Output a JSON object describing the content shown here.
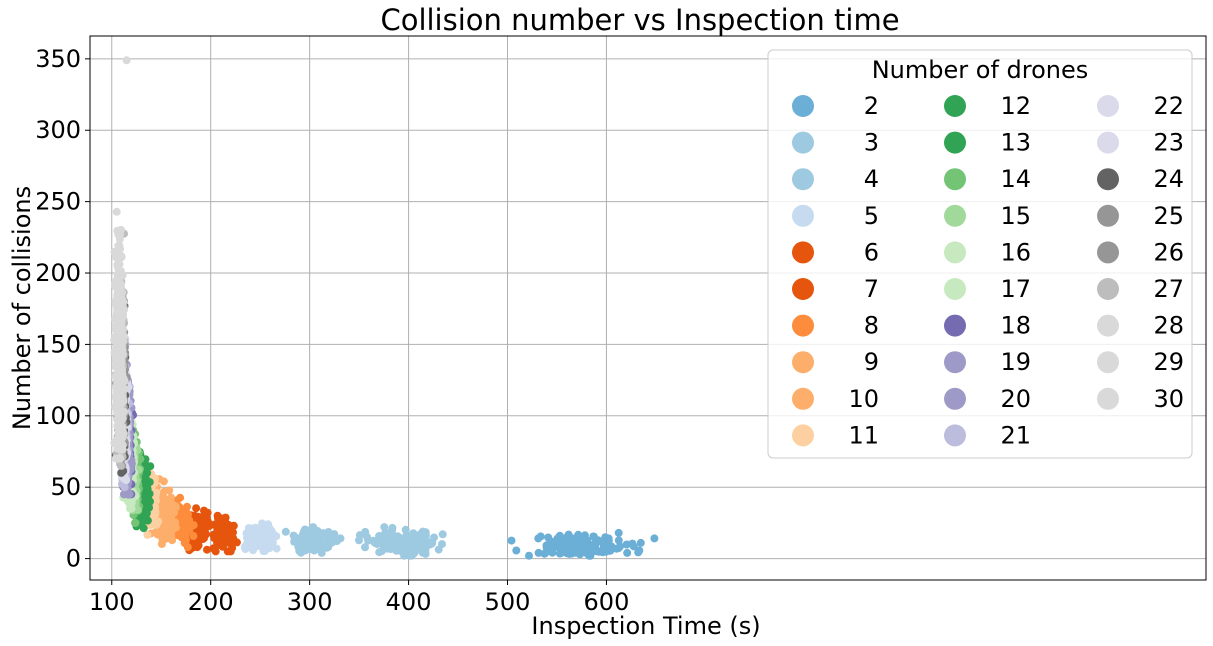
{
  "chart_data": {
    "type": "scatter",
    "title": "Collision number vs Inspection time",
    "xlabel": "Inspection Time (s)",
    "ylabel": "Number of collisions",
    "xlim": [
      78,
      1206
    ],
    "ylim": [
      -15,
      366
    ],
    "xticks": [
      100,
      200,
      300,
      400,
      500,
      600
    ],
    "yticks": [
      0,
      50,
      100,
      150,
      200,
      250,
      300,
      350
    ],
    "grid": true,
    "legend": {
      "title": "Number of drones",
      "placement": "upper-right",
      "columns": 3
    },
    "series": [
      {
        "name": "2",
        "color": "#6baed6",
        "x_center": 572,
        "x_spread": 26,
        "y_center": 9,
        "y_spread": 4,
        "y_min": 2,
        "y_max": 18
      },
      {
        "name": "3",
        "color": "#9ecae1",
        "x_center": 395,
        "x_spread": 18,
        "y_center": 11,
        "y_spread": 4,
        "y_min": 2,
        "y_max": 30
      },
      {
        "name": "4",
        "color": "#9ecae1",
        "x_center": 302,
        "x_spread": 10,
        "y_center": 12,
        "y_spread": 4,
        "y_min": 2,
        "y_max": 22
      },
      {
        "name": "5",
        "color": "#c6dbef",
        "x_center": 250,
        "x_spread": 7,
        "y_center": 15,
        "y_spread": 4,
        "y_min": 5,
        "y_max": 28
      },
      {
        "name": "6",
        "color": "#e6550d",
        "x_center": 214,
        "x_spread": 5,
        "y_center": 17,
        "y_spread": 5,
        "y_min": 5,
        "y_max": 35
      },
      {
        "name": "7",
        "color": "#e6550d",
        "x_center": 187,
        "x_spread": 4,
        "y_center": 20,
        "y_spread": 6,
        "y_min": 5,
        "y_max": 45
      },
      {
        "name": "8",
        "color": "#fd8d3c",
        "x_center": 170,
        "x_spread": 4,
        "y_center": 24,
        "y_spread": 6,
        "y_min": 8,
        "y_max": 45
      },
      {
        "name": "9",
        "color": "#fdae6b",
        "x_center": 156,
        "x_spread": 4,
        "y_center": 28,
        "y_spread": 7,
        "y_min": 10,
        "y_max": 50
      },
      {
        "name": "10",
        "color": "#fdae6b",
        "x_center": 146,
        "x_spread": 4,
        "y_center": 33,
        "y_spread": 8,
        "y_min": 12,
        "y_max": 60
      },
      {
        "name": "11",
        "color": "#fdd0a2",
        "x_center": 139,
        "x_spread": 3,
        "y_center": 37,
        "y_spread": 9,
        "y_min": 15,
        "y_max": 80
      },
      {
        "name": "12",
        "color": "#31a354",
        "x_center": 133,
        "x_spread": 3,
        "y_center": 42,
        "y_spread": 10,
        "y_min": 20,
        "y_max": 80
      },
      {
        "name": "13",
        "color": "#31a354",
        "x_center": 128,
        "x_spread": 3,
        "y_center": 47,
        "y_spread": 11,
        "y_min": 20,
        "y_max": 80
      },
      {
        "name": "14",
        "color": "#74c476",
        "x_center": 124,
        "x_spread": 2,
        "y_center": 54,
        "y_spread": 12,
        "y_min": 25,
        "y_max": 90
      },
      {
        "name": "15",
        "color": "#a1d99b",
        "x_center": 121,
        "x_spread": 2,
        "y_center": 60,
        "y_spread": 13,
        "y_min": 30,
        "y_max": 100
      },
      {
        "name": "16",
        "color": "#c7e9c0",
        "x_center": 119,
        "x_spread": 2,
        "y_center": 66,
        "y_spread": 14,
        "y_min": 35,
        "y_max": 110
      },
      {
        "name": "17",
        "color": "#c7e9c0",
        "x_center": 117,
        "x_spread": 2,
        "y_center": 72,
        "y_spread": 15,
        "y_min": 40,
        "y_max": 115
      },
      {
        "name": "18",
        "color": "#756bb1",
        "x_center": 116,
        "x_spread": 2,
        "y_center": 80,
        "y_spread": 18,
        "y_min": 45,
        "y_max": 125
      },
      {
        "name": "19",
        "color": "#9e9ac8",
        "x_center": 115,
        "x_spread": 2,
        "y_center": 86,
        "y_spread": 19,
        "y_min": 45,
        "y_max": 130
      },
      {
        "name": "20",
        "color": "#9e9ac8",
        "x_center": 114,
        "x_spread": 2,
        "y_center": 92,
        "y_spread": 20,
        "y_min": 50,
        "y_max": 140
      },
      {
        "name": "21",
        "color": "#bcbddc",
        "x_center": 113,
        "x_spread": 2,
        "y_center": 97,
        "y_spread": 21,
        "y_min": 50,
        "y_max": 150
      },
      {
        "name": "22",
        "color": "#dadaeb",
        "x_center": 112,
        "x_spread": 2,
        "y_center": 102,
        "y_spread": 22,
        "y_min": 55,
        "y_max": 160
      },
      {
        "name": "23",
        "color": "#dadaeb",
        "x_center": 111,
        "x_spread": 2,
        "y_center": 108,
        "y_spread": 23,
        "y_min": 55,
        "y_max": 170
      },
      {
        "name": "24",
        "color": "#636363",
        "x_center": 110,
        "x_spread": 2,
        "y_center": 115,
        "y_spread": 25,
        "y_min": 60,
        "y_max": 200
      },
      {
        "name": "25",
        "color": "#969696",
        "x_center": 110,
        "x_spread": 2,
        "y_center": 122,
        "y_spread": 27,
        "y_min": 60,
        "y_max": 235
      },
      {
        "name": "26",
        "color": "#969696",
        "x_center": 109,
        "x_spread": 2,
        "y_center": 128,
        "y_spread": 28,
        "y_min": 65,
        "y_max": 235
      },
      {
        "name": "27",
        "color": "#bdbdbd",
        "x_center": 109,
        "x_spread": 2,
        "y_center": 134,
        "y_spread": 30,
        "y_min": 65,
        "y_max": 230
      },
      {
        "name": "28",
        "color": "#d9d9d9",
        "x_center": 108,
        "x_spread": 2,
        "y_center": 140,
        "y_spread": 32,
        "y_min": 70,
        "y_max": 240
      },
      {
        "name": "29",
        "color": "#d9d9d9",
        "x_center": 108,
        "x_spread": 2,
        "y_center": 146,
        "y_spread": 33,
        "y_min": 70,
        "y_max": 245
      },
      {
        "name": "30",
        "color": "#d9d9d9",
        "x_center": 107,
        "x_spread": 2,
        "y_center": 150,
        "y_spread": 35,
        "y_min": 70,
        "y_max": 250
      }
    ],
    "outliers": [
      {
        "series": "28",
        "x": 115,
        "y": 349
      }
    ],
    "points_per_series": 140
  }
}
